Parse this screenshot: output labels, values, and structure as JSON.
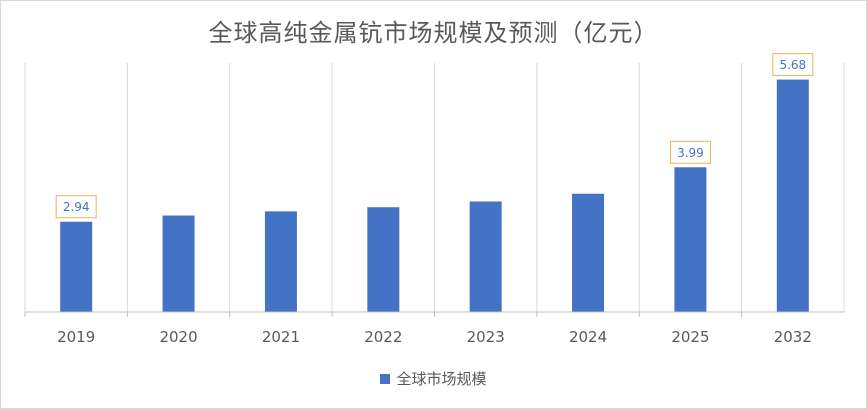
{
  "chart_data": {
    "type": "bar",
    "title": "全球高纯金属钪市场规模及预测（亿元）",
    "categories": [
      "2019",
      "2020",
      "2021",
      "2022",
      "2023",
      "2024",
      "2025",
      "2032"
    ],
    "series": [
      {
        "name": "全球市场规模",
        "values": [
          2.94,
          3.06,
          3.14,
          3.22,
          3.33,
          3.48,
          3.99,
          5.68
        ],
        "color": "#4472c4"
      }
    ],
    "data_labels": {
      "2019": "2.94",
      "2025": "3.99",
      "2032": "5.68"
    },
    "ylim": [
      1.2,
      6.0
    ],
    "y_axis_visible": false,
    "grid": "vertical",
    "legend": "bottom",
    "label_border_color": "#f0b15a",
    "label_text_color": "#4472c4"
  }
}
